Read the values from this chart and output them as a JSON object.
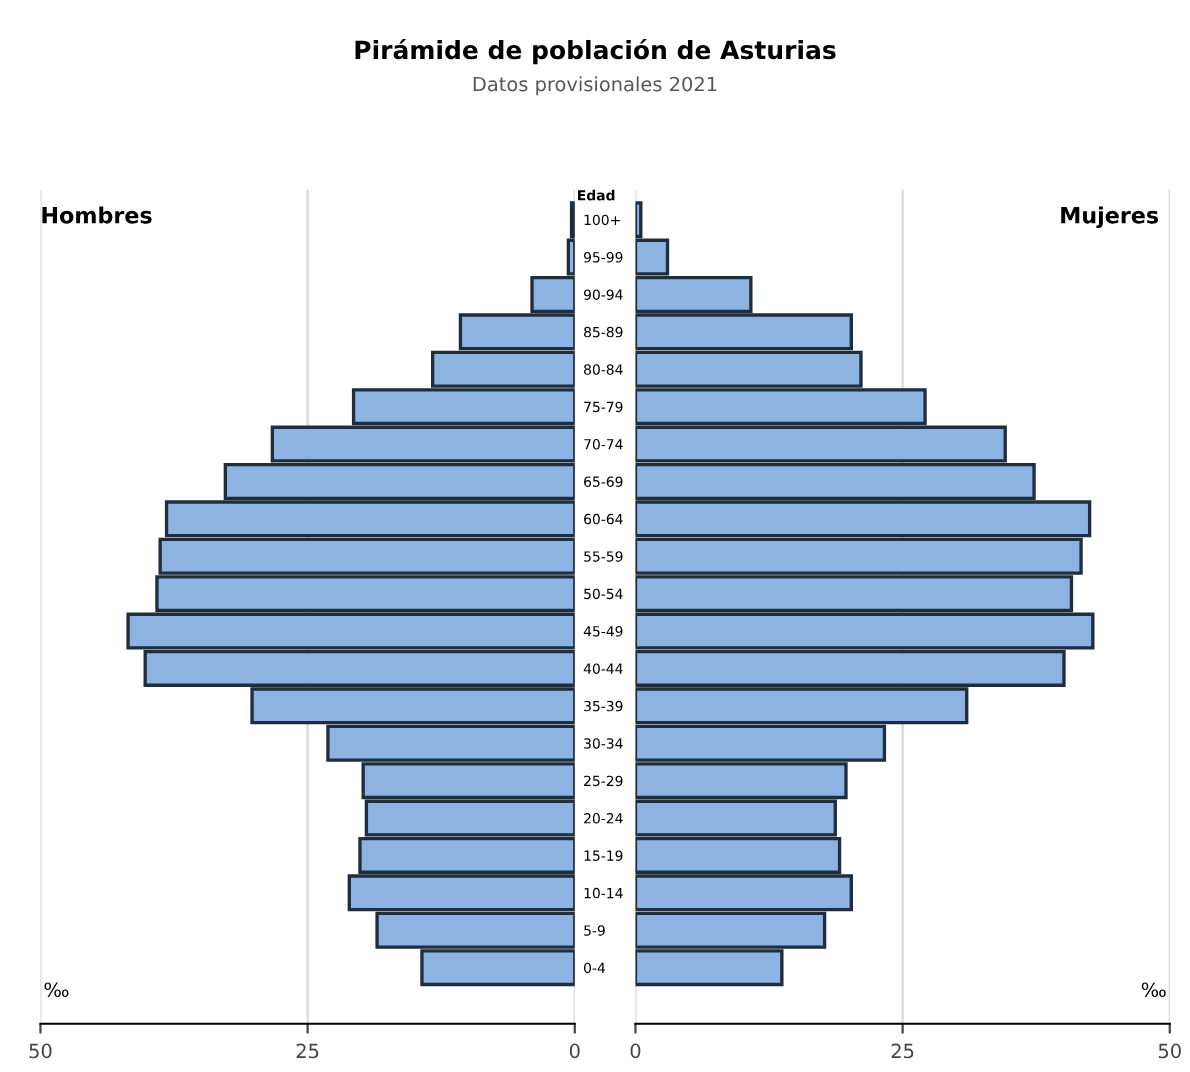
{
  "chart_data": [
    {
      "type": "bar",
      "orientation": "horizontal",
      "title": "Pirámide de población de Asturias",
      "subtitle": "Datos provisionales 2021",
      "xlabel": "‰",
      "categories": [
        "100+",
        "95-99",
        "90-94",
        "85-89",
        "80-84",
        "75-79",
        "70-74",
        "65-69",
        "60-64",
        "55-59",
        "50-54",
        "45-49",
        "40-44",
        "35-39",
        "30-34",
        "25-29",
        "20-24",
        "15-19",
        "10-14",
        "5-9",
        "0-4"
      ],
      "series": [
        {
          "name": "Hombres",
          "color": "#8db3e2",
          "values": [
            0.3,
            0.6,
            4.0,
            10.7,
            13.3,
            20.7,
            28.3,
            32.7,
            38.2,
            38.8,
            39.1,
            41.8,
            40.2,
            30.2,
            23.1,
            19.8,
            19.5,
            20.1,
            21.1,
            18.5,
            14.3
          ]
        }
      ],
      "xlim": [
        50,
        0
      ],
      "xticks": [
        50,
        25,
        0
      ],
      "grid": "x",
      "ylabel": "Edad"
    },
    {
      "type": "bar",
      "orientation": "horizontal",
      "xlabel": "‰",
      "tick_labels": "x",
      "categories": [
        null,
        null,
        null,
        null,
        null,
        null,
        null,
        null,
        null,
        null,
        null,
        null,
        null,
        null,
        null,
        null,
        null,
        null,
        null,
        null,
        null
      ],
      "series": [
        {
          "name": "Mujeres",
          "color": "#8db3e2",
          "values": [
            0.5,
            3.0,
            10.8,
            20.2,
            21.1,
            27.1,
            34.6,
            37.3,
            42.5,
            41.7,
            40.8,
            42.8,
            40.1,
            31.0,
            23.3,
            19.7,
            18.7,
            19.1,
            20.2,
            17.7,
            13.7
          ]
        }
      ],
      "xlim": [
        0,
        50
      ],
      "xticks": [
        0,
        25,
        50
      ],
      "grid": "x"
    }
  ]
}
